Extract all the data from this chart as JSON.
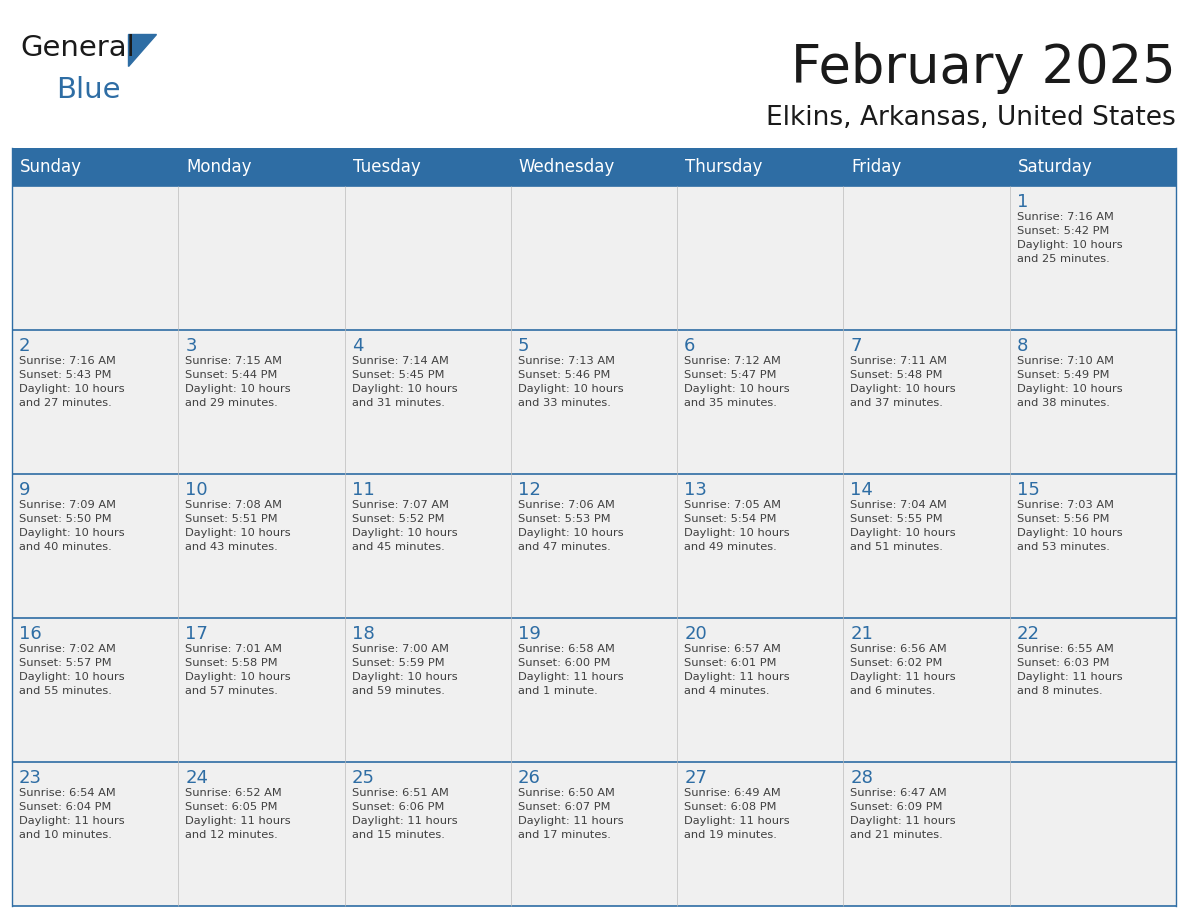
{
  "title": "February 2025",
  "subtitle": "Elkins, Arkansas, United States",
  "header_bg": "#2E6DA4",
  "header_text_color": "#FFFFFF",
  "cell_bg": "#F0F0F0",
  "day_number_color": "#2E6DA4",
  "cell_text_color": "#404040",
  "grid_line_color": "#2E6DA4",
  "days_of_week": [
    "Sunday",
    "Monday",
    "Tuesday",
    "Wednesday",
    "Thursday",
    "Friday",
    "Saturday"
  ],
  "weeks": [
    [
      {
        "day": null,
        "info": null
      },
      {
        "day": null,
        "info": null
      },
      {
        "day": null,
        "info": null
      },
      {
        "day": null,
        "info": null
      },
      {
        "day": null,
        "info": null
      },
      {
        "day": null,
        "info": null
      },
      {
        "day": "1",
        "info": "Sunrise: 7:16 AM\nSunset: 5:42 PM\nDaylight: 10 hours\nand 25 minutes."
      }
    ],
    [
      {
        "day": "2",
        "info": "Sunrise: 7:16 AM\nSunset: 5:43 PM\nDaylight: 10 hours\nand 27 minutes."
      },
      {
        "day": "3",
        "info": "Sunrise: 7:15 AM\nSunset: 5:44 PM\nDaylight: 10 hours\nand 29 minutes."
      },
      {
        "day": "4",
        "info": "Sunrise: 7:14 AM\nSunset: 5:45 PM\nDaylight: 10 hours\nand 31 minutes."
      },
      {
        "day": "5",
        "info": "Sunrise: 7:13 AM\nSunset: 5:46 PM\nDaylight: 10 hours\nand 33 minutes."
      },
      {
        "day": "6",
        "info": "Sunrise: 7:12 AM\nSunset: 5:47 PM\nDaylight: 10 hours\nand 35 minutes."
      },
      {
        "day": "7",
        "info": "Sunrise: 7:11 AM\nSunset: 5:48 PM\nDaylight: 10 hours\nand 37 minutes."
      },
      {
        "day": "8",
        "info": "Sunrise: 7:10 AM\nSunset: 5:49 PM\nDaylight: 10 hours\nand 38 minutes."
      }
    ],
    [
      {
        "day": "9",
        "info": "Sunrise: 7:09 AM\nSunset: 5:50 PM\nDaylight: 10 hours\nand 40 minutes."
      },
      {
        "day": "10",
        "info": "Sunrise: 7:08 AM\nSunset: 5:51 PM\nDaylight: 10 hours\nand 43 minutes."
      },
      {
        "day": "11",
        "info": "Sunrise: 7:07 AM\nSunset: 5:52 PM\nDaylight: 10 hours\nand 45 minutes."
      },
      {
        "day": "12",
        "info": "Sunrise: 7:06 AM\nSunset: 5:53 PM\nDaylight: 10 hours\nand 47 minutes."
      },
      {
        "day": "13",
        "info": "Sunrise: 7:05 AM\nSunset: 5:54 PM\nDaylight: 10 hours\nand 49 minutes."
      },
      {
        "day": "14",
        "info": "Sunrise: 7:04 AM\nSunset: 5:55 PM\nDaylight: 10 hours\nand 51 minutes."
      },
      {
        "day": "15",
        "info": "Sunrise: 7:03 AM\nSunset: 5:56 PM\nDaylight: 10 hours\nand 53 minutes."
      }
    ],
    [
      {
        "day": "16",
        "info": "Sunrise: 7:02 AM\nSunset: 5:57 PM\nDaylight: 10 hours\nand 55 minutes."
      },
      {
        "day": "17",
        "info": "Sunrise: 7:01 AM\nSunset: 5:58 PM\nDaylight: 10 hours\nand 57 minutes."
      },
      {
        "day": "18",
        "info": "Sunrise: 7:00 AM\nSunset: 5:59 PM\nDaylight: 10 hours\nand 59 minutes."
      },
      {
        "day": "19",
        "info": "Sunrise: 6:58 AM\nSunset: 6:00 PM\nDaylight: 11 hours\nand 1 minute."
      },
      {
        "day": "20",
        "info": "Sunrise: 6:57 AM\nSunset: 6:01 PM\nDaylight: 11 hours\nand 4 minutes."
      },
      {
        "day": "21",
        "info": "Sunrise: 6:56 AM\nSunset: 6:02 PM\nDaylight: 11 hours\nand 6 minutes."
      },
      {
        "day": "22",
        "info": "Sunrise: 6:55 AM\nSunset: 6:03 PM\nDaylight: 11 hours\nand 8 minutes."
      }
    ],
    [
      {
        "day": "23",
        "info": "Sunrise: 6:54 AM\nSunset: 6:04 PM\nDaylight: 11 hours\nand 10 minutes."
      },
      {
        "day": "24",
        "info": "Sunrise: 6:52 AM\nSunset: 6:05 PM\nDaylight: 11 hours\nand 12 minutes."
      },
      {
        "day": "25",
        "info": "Sunrise: 6:51 AM\nSunset: 6:06 PM\nDaylight: 11 hours\nand 15 minutes."
      },
      {
        "day": "26",
        "info": "Sunrise: 6:50 AM\nSunset: 6:07 PM\nDaylight: 11 hours\nand 17 minutes."
      },
      {
        "day": "27",
        "info": "Sunrise: 6:49 AM\nSunset: 6:08 PM\nDaylight: 11 hours\nand 19 minutes."
      },
      {
        "day": "28",
        "info": "Sunrise: 6:47 AM\nSunset: 6:09 PM\nDaylight: 11 hours\nand 21 minutes."
      },
      {
        "day": null,
        "info": null
      }
    ]
  ]
}
